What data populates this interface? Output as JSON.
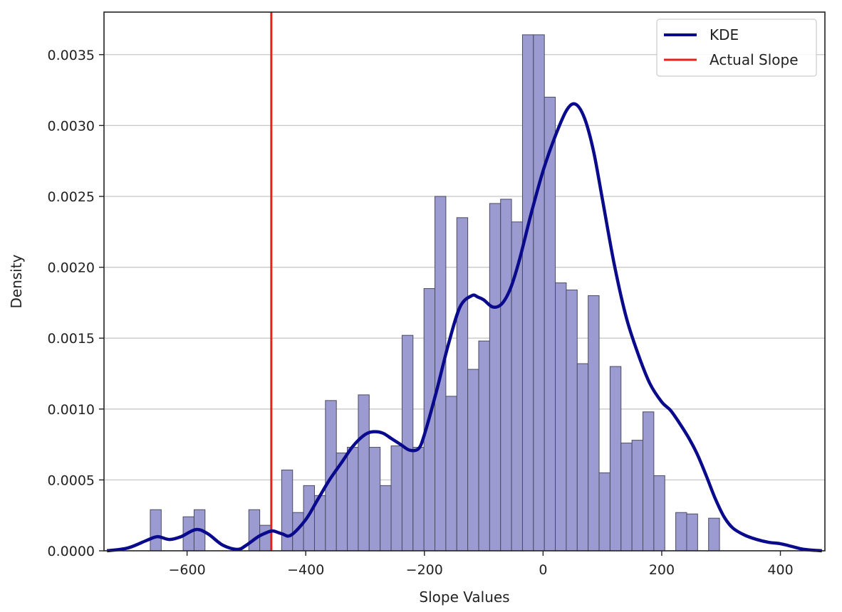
{
  "chart_data": {
    "type": "bar",
    "subtype": "histogram-with-kde",
    "xlabel": "Slope Values",
    "ylabel": "Density",
    "xlim": [
      -740,
      475
    ],
    "ylim": [
      0,
      0.0038
    ],
    "xticks": [
      -600,
      -400,
      -200,
      0,
      200,
      400
    ],
    "xtick_labels": [
      "−600",
      "−400",
      "−200",
      "0",
      "200",
      "400"
    ],
    "yticks": [
      0,
      0.0005,
      0.001,
      0.0015,
      0.002,
      0.0025,
      0.003,
      0.0035
    ],
    "ytick_labels": [
      "0.0000",
      "0.0005",
      "0.0010",
      "0.0015",
      "0.0020",
      "0.0025",
      "0.0030",
      "0.0035"
    ],
    "grid": "horizontal",
    "legend_position": "top-right",
    "histogram": {
      "bin_width": 18.45,
      "bin_start": -662.0,
      "values": [
        0.00029,
        0,
        0,
        0.00024,
        0.00029,
        0,
        0,
        0,
        0,
        0.00029,
        0.00018,
        0,
        0.00057,
        0.00027,
        0.00046,
        0.00039,
        0.00106,
        0.00069,
        0.00073,
        0.0011,
        0.00073,
        0.00046,
        0.00074,
        0.00152,
        0.00073,
        0.00185,
        0.0025,
        0.00109,
        0.00235,
        0.00128,
        0.00148,
        0.00245,
        0.00248,
        0.00232,
        0.00364,
        0.00364,
        0.0032,
        0.00189,
        0.00184,
        0.00132,
        0.0018,
        0.00055,
        0.0013,
        0.00076,
        0.00078,
        0.00098,
        0.00053,
        0,
        0.00027,
        0.00026,
        0,
        0.00023
      ],
      "fill_color": "#9b9bd2",
      "edge_color": "#4a4a60"
    },
    "series": [
      {
        "name": "KDE",
        "color": "#0a0a8c",
        "x": [
          -735,
          -700,
          -670,
          -650,
          -630,
          -610,
          -585,
          -565,
          -540,
          -515,
          -500,
          -480,
          -465,
          -455,
          -440,
          -425,
          -400,
          -380,
          -360,
          -340,
          -320,
          -300,
          -285,
          -270,
          -255,
          -240,
          -225,
          -210,
          -200,
          -180,
          -160,
          -140,
          -120,
          -110,
          -100,
          -85,
          -70,
          -55,
          -40,
          -20,
          0,
          20,
          40,
          55,
          70,
          85,
          100,
          120,
          140,
          160,
          180,
          200,
          215,
          230,
          245,
          260,
          275,
          290,
          305,
          320,
          340,
          360,
          380,
          400,
          420,
          440,
          470
        ],
        "y": [
          0.0,
          2e-05,
          7e-05,
          0.0001,
          8e-05,
          0.0001,
          0.00015,
          0.00012,
          4e-05,
          1e-05,
          4e-05,
          0.0001,
          0.00013,
          0.00014,
          0.00012,
          0.00011,
          0.00022,
          0.00036,
          0.0005,
          0.00062,
          0.00074,
          0.00082,
          0.00084,
          0.00083,
          0.00079,
          0.00075,
          0.00071,
          0.00072,
          0.00082,
          0.00112,
          0.00145,
          0.00172,
          0.0018,
          0.00179,
          0.00177,
          0.00172,
          0.00174,
          0.00185,
          0.00205,
          0.00238,
          0.00268,
          0.00292,
          0.00311,
          0.00315,
          0.00305,
          0.00282,
          0.00248,
          0.00202,
          0.00165,
          0.00139,
          0.00118,
          0.00105,
          0.00099,
          0.0009,
          0.0008,
          0.00068,
          0.00053,
          0.00037,
          0.00024,
          0.00016,
          0.00011,
          8e-05,
          6e-05,
          5e-05,
          3e-05,
          1e-05,
          0.0
        ]
      },
      {
        "name": "Actual Slope",
        "color": "#e8201c",
        "type": "vline",
        "x": -458
      }
    ]
  }
}
